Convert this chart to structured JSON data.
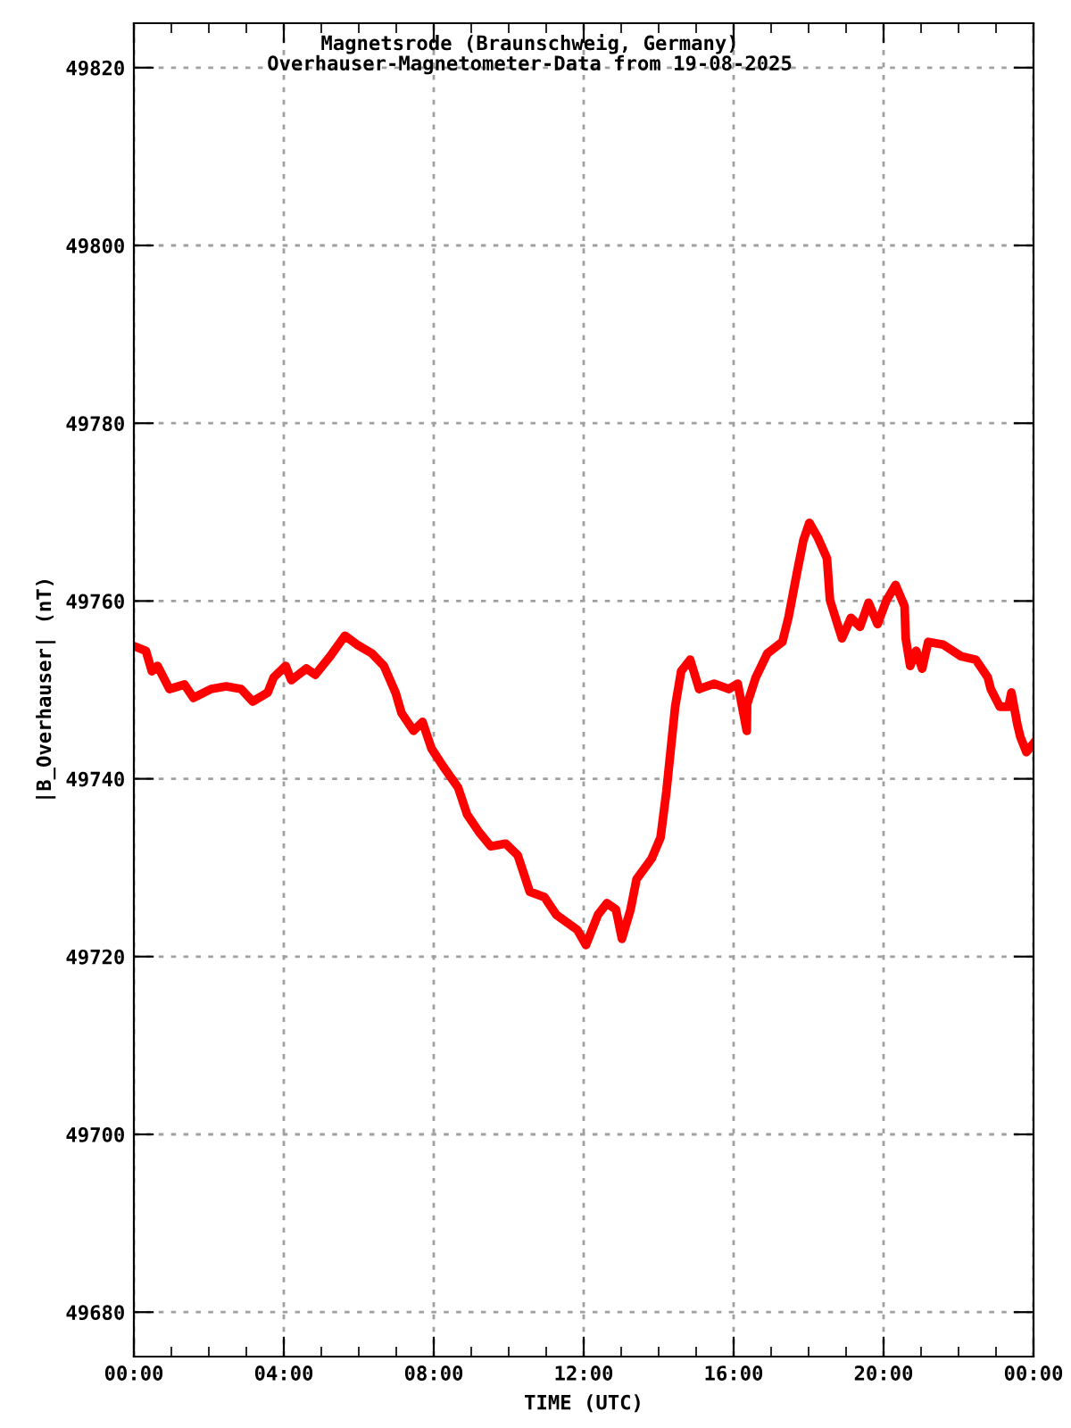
{
  "chart_data": {
    "type": "line",
    "title": "Magnetsrode (Braunschweig, Germany)",
    "subtitle": "Overhauser-Magnetometer-Data from 19-08-2025",
    "xlabel": "TIME (UTC)",
    "ylabel": "|B_Overhauser| (nT)",
    "x": [
      0.08,
      0.32,
      0.48,
      0.63,
      0.95,
      1.35,
      1.59,
      2.06,
      2.46,
      2.86,
      3.17,
      3.57,
      3.73,
      4.05,
      4.2,
      4.6,
      4.84,
      5.24,
      5.63,
      5.95,
      6.35,
      6.67,
      6.98,
      7.14,
      7.46,
      7.7,
      7.94,
      8.25,
      8.65,
      8.89,
      9.21,
      9.52,
      9.92,
      10.24,
      10.56,
      10.95,
      11.27,
      11.83,
      12.06,
      12.38,
      12.62,
      12.86,
      13.02,
      13.25,
      13.41,
      13.81,
      14.05,
      14.21,
      14.29,
      14.44,
      14.6,
      14.84,
      15.08,
      15.48,
      15.87,
      16.11,
      16.35,
      16.36,
      16.59,
      16.9,
      17.3,
      17.46,
      17.7,
      17.86,
      18.02,
      18.25,
      18.49,
      18.57,
      18.89,
      19.13,
      19.37,
      19.6,
      19.84,
      20.08,
      20.32,
      20.56,
      20.59,
      20.71,
      20.87,
      21.03,
      21.19,
      21.59,
      22.06,
      22.46,
      22.78,
      22.86,
      23.1,
      23.33,
      23.41,
      23.57,
      23.65,
      23.81,
      24.0
    ],
    "series": [
      {
        "color": "#ff0000",
        "values": [
          49754.8,
          49754.4,
          49752.1,
          49752.7,
          49750.1,
          49750.6,
          49749.1,
          49750.1,
          49750.4,
          49750.1,
          49748.7,
          49749.7,
          49751.4,
          49752.7,
          49751.1,
          49752.4,
          49751.7,
          49753.8,
          49756.1,
          49755.1,
          49754.1,
          49752.7,
          49749.7,
          49747.4,
          49745.4,
          49746.4,
          49743.4,
          49741.4,
          49739.0,
          49736.0,
          49734.0,
          49732.4,
          49732.7,
          49731.4,
          49727.3,
          49726.7,
          49724.7,
          49723.0,
          49721.3,
          49724.7,
          49726.0,
          49725.3,
          49722.0,
          49725.3,
          49728.7,
          49731.0,
          49733.4,
          49738.7,
          49742.0,
          49748.1,
          49752.1,
          49753.4,
          49750.1,
          49750.7,
          49750.1,
          49750.7,
          49745.4,
          49748.4,
          49751.4,
          49754.1,
          49755.4,
          49758.1,
          49763.4,
          49766.8,
          49768.8,
          49767.1,
          49764.8,
          49760.1,
          49755.8,
          49758.1,
          49757.1,
          49759.8,
          49757.4,
          49760.1,
          49761.8,
          49759.4,
          49755.8,
          49752.7,
          49754.4,
          49752.4,
          49755.4,
          49755.1,
          49753.8,
          49753.4,
          49751.4,
          49750.1,
          49748.1,
          49748.1,
          49749.7,
          49746.1,
          49744.7,
          49743.0,
          49744.0
        ]
      }
    ],
    "xlim": [
      0,
      24
    ],
    "xticks": [
      {
        "value": 0,
        "label": "00:00"
      },
      {
        "value": 4,
        "label": "04:00"
      },
      {
        "value": 8,
        "label": "08:00"
      },
      {
        "value": 12,
        "label": "12:00"
      },
      {
        "value": 16,
        "label": "16:00"
      },
      {
        "value": 20,
        "label": "20:00"
      },
      {
        "value": 24,
        "label": "00:00"
      }
    ],
    "ylim": [
      49675,
      49825
    ],
    "yticks": [
      49680,
      49700,
      49720,
      49740,
      49760,
      49780,
      49800,
      49820
    ],
    "grid": true,
    "line_style": "solid",
    "marker": "none",
    "legend": false
  }
}
